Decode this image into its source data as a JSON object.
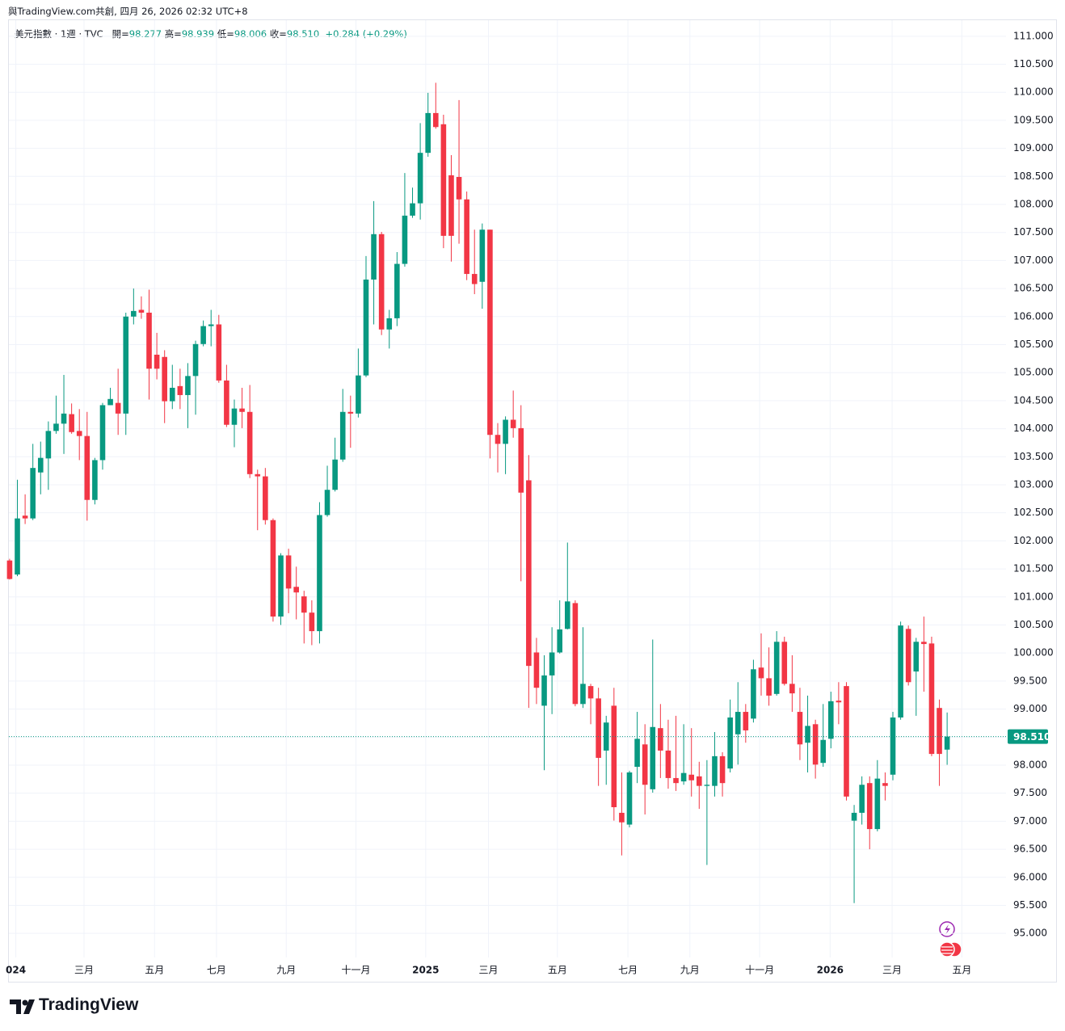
{
  "header": {
    "attribution": "與TradingView.com共創, 四月 26, 2026 02:32 UTC+8",
    "logo": "TradingView"
  },
  "chart_data": {
    "type": "candlestick",
    "symbol": "美元指數 · 1週 · TVC",
    "ohlc_labels": [
      {
        "label": "開=",
        "value": "98.277"
      },
      {
        "label": "高=",
        "value": "98.939"
      },
      {
        "label": "低=",
        "value": "98.006"
      },
      {
        "label": "收=",
        "value": "98.510"
      }
    ],
    "change": "+0.284 (+0.29%)",
    "up_color": "#089981",
    "down_color": "#f23645",
    "grid": true,
    "xlim": [
      -0.2,
      128.6
    ],
    "xticks": [
      {
        "value": 0.8,
        "label": "024"
      },
      {
        "value": 9.6,
        "label": "三月"
      },
      {
        "value": 18.7,
        "label": "五月"
      },
      {
        "value": 26.7,
        "label": "七月"
      },
      {
        "value": 35.7,
        "label": "九月"
      },
      {
        "value": 44.7,
        "label": "十一月"
      },
      {
        "value": 53.7,
        "label": "2025"
      },
      {
        "value": 61.8,
        "label": "三月"
      },
      {
        "value": 70.7,
        "label": "五月"
      },
      {
        "value": 79.8,
        "label": "七月"
      },
      {
        "value": 87.8,
        "label": "九月"
      },
      {
        "value": 96.8,
        "label": "十一月"
      },
      {
        "value": 105.9,
        "label": "2026"
      },
      {
        "value": 113.9,
        "label": "三月"
      },
      {
        "value": 122.9,
        "label": "五月"
      }
    ],
    "ylim": [
      94.57,
      111.3
    ],
    "yticks": [
      {
        "value": 95,
        "label": "95.000"
      },
      {
        "value": 95.5,
        "label": "95.500"
      },
      {
        "value": 96,
        "label": "96.000"
      },
      {
        "value": 96.5,
        "label": "96.500"
      },
      {
        "value": 97,
        "label": "97.000"
      },
      {
        "value": 97.5,
        "label": "97.500"
      },
      {
        "value": 98,
        "label": "98.000"
      },
      {
        "value": 98.5,
        "label": "98.500"
      },
      {
        "value": 99,
        "label": "99.000"
      },
      {
        "value": 99.5,
        "label": "99.500"
      },
      {
        "value": 100,
        "label": "100.000"
      },
      {
        "value": 100.5,
        "label": "100.500"
      },
      {
        "value": 101,
        "label": "101.000"
      },
      {
        "value": 101.5,
        "label": "101.500"
      },
      {
        "value": 102,
        "label": "102.000"
      },
      {
        "value": 102.5,
        "label": "102.500"
      },
      {
        "value": 103,
        "label": "103.000"
      },
      {
        "value": 103.5,
        "label": "103.500"
      },
      {
        "value": 104,
        "label": "104.000"
      },
      {
        "value": 104.5,
        "label": "104.500"
      },
      {
        "value": 105,
        "label": "105.000"
      },
      {
        "value": 105.5,
        "label": "105.500"
      },
      {
        "value": 106,
        "label": "106.000"
      },
      {
        "value": 106.5,
        "label": "106.500"
      },
      {
        "value": 107,
        "label": "107.000"
      },
      {
        "value": 107.5,
        "label": "107.500"
      },
      {
        "value": 108,
        "label": "108.000"
      },
      {
        "value": 108.5,
        "label": "108.500"
      },
      {
        "value": 109,
        "label": "109.000"
      },
      {
        "value": 109.5,
        "label": "109.500"
      },
      {
        "value": 110,
        "label": "110.000"
      },
      {
        "value": 110.5,
        "label": "110.500"
      },
      {
        "value": 111,
        "label": "111.000"
      }
    ],
    "last_price": {
      "value": 98.51,
      "label": "98.510"
    },
    "open": [
      101.65,
      101.4,
      102.45,
      102.4,
      103.22,
      103.47,
      103.96,
      104.09,
      104.26,
      103.96,
      103.87,
      102.73,
      103.44,
      104.42,
      104.46,
      104.27,
      106.0,
      106.12,
      106.07,
      105.32,
      105.28,
      104.49,
      104.76,
      104.6,
      104.94,
      105.51,
      105.83,
      105.86,
      104.86,
      104.07,
      104.36,
      104.3,
      103.19,
      103.15,
      102.37,
      100.65,
      101.74,
      101.18,
      101.01,
      100.72,
      100.39,
      102.46,
      102.91,
      103.45,
      104.3,
      104.27,
      104.95,
      106.66,
      107.47,
      105.77,
      105.97,
      106.94,
      107.8,
      108.02,
      108.92,
      109.63,
      109.43,
      108.52,
      108.49,
      108.09,
      106.76,
      106.62,
      107.55,
      103.89,
      103.73,
      104.16,
      104.01,
      103.08,
      100.01,
      99.06,
      99.6,
      100.01,
      100.43,
      100.89,
      99.09,
      99.41,
      99.19,
      98.26,
      99.06,
      97.15,
      96.94,
      97.97,
      98.37,
      97.57,
      98.66,
      98.26,
      97.77,
      97.71,
      97.83,
      97.8,
      97.63,
      97.63,
      98.16,
      97.94,
      98.55,
      98.95,
      98.83,
      99.74,
      99.55,
      99.27,
      100.2,
      99.45,
      98.95,
      98.4,
      98.73,
      98.04,
      98.47,
      99.15,
      99.41,
      97.01,
      97.15,
      97.68,
      96.86,
      97.68,
      97.83,
      98.85,
      100.43,
      99.67,
      100.2,
      100.17,
      99.02,
      98.277
    ],
    "high": [
      101.68,
      103.09,
      102.83,
      103.73,
      103.77,
      104.13,
      104.59,
      104.96,
      104.45,
      104.35,
      104.3,
      103.48,
      104.46,
      104.73,
      105.07,
      106.07,
      106.5,
      106.36,
      106.48,
      105.71,
      105.4,
      105.14,
      105.07,
      105.17,
      105.57,
      105.93,
      106.12,
      106.03,
      105.14,
      104.52,
      104.73,
      104.78,
      103.27,
      103.3,
      102.4,
      101.78,
      101.86,
      101.54,
      101.11,
      100.94,
      102.69,
      103.34,
      103.84,
      104.71,
      104.59,
      105.43,
      107.08,
      108.06,
      107.51,
      106.12,
      107.15,
      108.56,
      108.3,
      109.45,
      109.99,
      110.17,
      109.6,
      108.88,
      109.86,
      108.23,
      107.55,
      107.66,
      107.55,
      104.1,
      104.22,
      104.68,
      104.42,
      103.53,
      100.27,
      99.96,
      100.46,
      100.94,
      101.97,
      100.94,
      100.46,
      99.45,
      99.38,
      98.88,
      99.38,
      97.87,
      97.9,
      98.95,
      98.73,
      100.24,
      99.09,
      98.81,
      98.88,
      98.73,
      98.66,
      98.06,
      98.09,
      98.59,
      98.23,
      99.17,
      99.48,
      99.09,
      99.88,
      100.35,
      100.1,
      100.39,
      100.29,
      99.96,
      99.38,
      99.24,
      98.81,
      99.09,
      99.31,
      99.48,
      99.48,
      97.29,
      97.8,
      97.8,
      98.09,
      97.87,
      98.95,
      100.56,
      100.49,
      100.27,
      100.65,
      100.29,
      99.17,
      98.939
    ],
    "low": [
      101.31,
      101.37,
      102.3,
      102.37,
      102.83,
      102.91,
      103.91,
      103.55,
      103.91,
      103.44,
      102.36,
      102.65,
      103.27,
      104.42,
      103.89,
      103.89,
      105.86,
      105.96,
      104.52,
      104.88,
      104.1,
      104.35,
      104.35,
      104.01,
      104.25,
      105.47,
      105.47,
      104.82,
      104.03,
      103.67,
      104.01,
      103.12,
      102.19,
      102.29,
      100.56,
      100.5,
      100.71,
      100.6,
      100.17,
      100.14,
      100.17,
      102.43,
      102.88,
      103.41,
      103.66,
      104.2,
      104.92,
      105.86,
      105.67,
      105.43,
      105.83,
      106.89,
      107.76,
      107.73,
      108.85,
      109.35,
      107.22,
      106.98,
      107.3,
      106.65,
      106.4,
      106.14,
      103.47,
      103.22,
      103.19,
      103.84,
      101.28,
      99.02,
      99.09,
      97.91,
      98.91,
      99.99,
      100.42,
      99.05,
      99.02,
      98.73,
      97.63,
      97.65,
      97.01,
      96.39,
      96.89,
      97.68,
      97.12,
      97.51,
      97.77,
      97.58,
      97.54,
      97.65,
      97.44,
      97.22,
      96.22,
      97.44,
      97.44,
      97.87,
      98.01,
      98.4,
      98.76,
      99.24,
      99.06,
      99.24,
      99.42,
      98.95,
      98.09,
      97.87,
      97.76,
      97.97,
      98.3,
      98.73,
      97.37,
      95.54,
      96.94,
      96.5,
      96.82,
      97.37,
      97.73,
      98.81,
      99.42,
      98.88,
      99.31,
      98.16,
      97.63,
      98.006
    ],
    "close": [
      101.32,
      102.4,
      102.4,
      103.3,
      103.48,
      103.96,
      104.09,
      104.27,
      103.94,
      103.87,
      102.73,
      103.44,
      104.42,
      104.53,
      104.27,
      106.0,
      106.1,
      106.07,
      105.07,
      105.07,
      104.49,
      104.73,
      104.6,
      104.94,
      105.51,
      105.83,
      105.86,
      104.86,
      104.07,
      104.36,
      104.3,
      103.19,
      103.15,
      102.37,
      100.65,
      101.74,
      101.15,
      101.08,
      100.72,
      100.39,
      102.46,
      102.91,
      103.45,
      104.3,
      104.27,
      104.95,
      106.66,
      107.47,
      105.77,
      105.97,
      106.94,
      107.8,
      108.02,
      108.92,
      109.63,
      109.38,
      107.44,
      107.44,
      108.09,
      106.76,
      106.58,
      107.55,
      103.89,
      103.73,
      104.16,
      104.01,
      102.86,
      99.77,
      99.38,
      99.6,
      100.01,
      100.42,
      100.92,
      99.09,
      99.45,
      99.19,
      98.13,
      98.76,
      97.25,
      96.98,
      97.87,
      98.47,
      97.65,
      98.68,
      98.26,
      97.77,
      97.68,
      97.86,
      97.73,
      97.63,
      97.65,
      98.16,
      97.68,
      98.85,
      98.95,
      98.62,
      99.71,
      99.55,
      99.24,
      100.2,
      99.45,
      99.28,
      98.37,
      98.7,
      98.01,
      98.45,
      99.14,
      99.12,
      97.44,
      97.15,
      97.65,
      96.86,
      97.76,
      97.63,
      98.85,
      100.49,
      99.48,
      100.2,
      100.16,
      98.2,
      98.2,
      98.51
    ]
  }
}
